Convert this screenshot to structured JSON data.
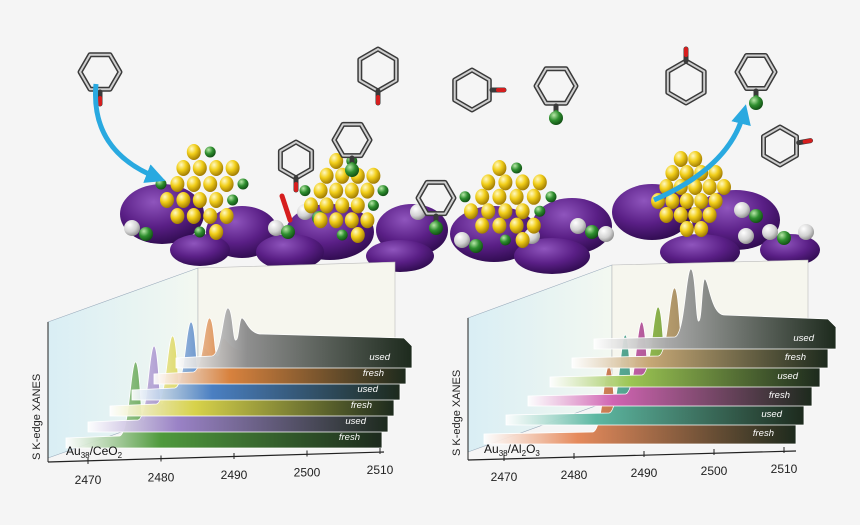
{
  "colors": {
    "background": "#f5f5f5",
    "support": "#5a1f86",
    "gold": "#f2cf1a",
    "sulfur_green": "#2f8f2f",
    "hydrogen_grey": "#d2d2d2",
    "oxygen_red": "#d61e1e",
    "arrow": "#29a9e0"
  },
  "icons": [
    "curved-arrow-icon",
    "benzene-ring-icon",
    "gold-cluster-icon"
  ],
  "left_panel": {
    "y_axis_label": "S K-edge XANES",
    "sample_label_main": "Au",
    "sample_label_sub1": "38",
    "sample_label_mid": "/CeO",
    "sample_label_sub2": "2",
    "x_ticks": [
      "2470",
      "2480",
      "2490",
      "2500",
      "2510"
    ],
    "traces": [
      {
        "label": "fresh",
        "color": "#4f9a3d"
      },
      {
        "label": "used",
        "color": "#9a82c6"
      },
      {
        "label": "fresh",
        "color": "#d7d24a"
      },
      {
        "label": "used",
        "color": "#4a7fc2"
      },
      {
        "label": "fresh",
        "color": "#d8823e"
      },
      {
        "label": "used",
        "color": "#8f8f8f"
      }
    ]
  },
  "right_panel": {
    "y_axis_label": "S K-edge XANES",
    "sample_label_main": "Au",
    "sample_label_sub1": "38",
    "sample_label_mid": "/Al",
    "sample_label_sub2": "2",
    "sample_label_mid2": "O",
    "sample_label_sub3": "3",
    "x_ticks": [
      "2470",
      "2480",
      "2490",
      "2500",
      "2510"
    ],
    "traces": [
      {
        "label": "fresh",
        "color": "#e58a5c"
      },
      {
        "label": "used",
        "color": "#5db8a2"
      },
      {
        "label": "fresh",
        "color": "#d064b2"
      },
      {
        "label": "used",
        "color": "#9bc552"
      },
      {
        "label": "fresh",
        "color": "#c7a876"
      },
      {
        "label": "used",
        "color": "#a9a9a9"
      }
    ]
  }
}
